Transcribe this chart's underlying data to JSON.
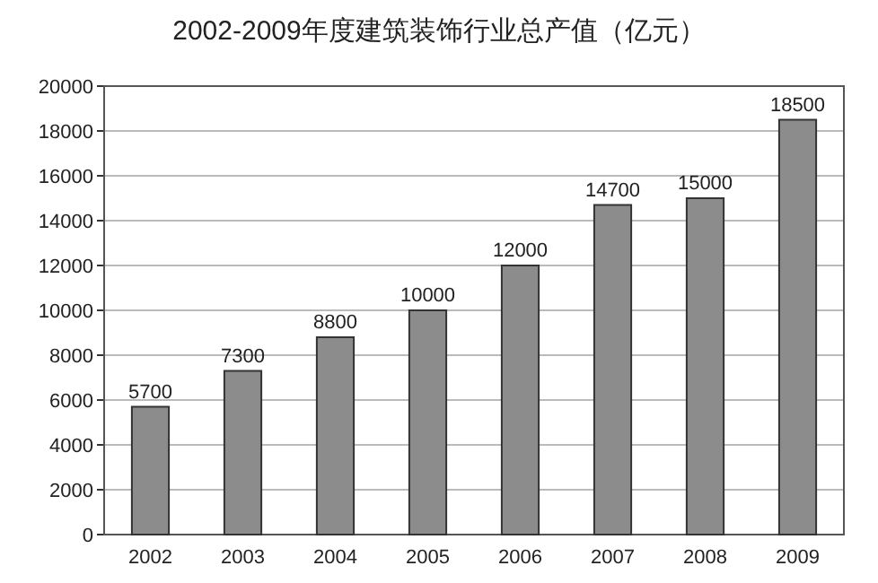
{
  "chart_data": {
    "type": "bar",
    "title": "2002-2009年度建筑装饰行业总产值（亿元）",
    "categories": [
      "2002",
      "2003",
      "2004",
      "2005",
      "2006",
      "2007",
      "2008",
      "2009"
    ],
    "values": [
      5700,
      7300,
      8800,
      10000,
      12000,
      14700,
      15000,
      18500
    ],
    "color": "#8c8c8c",
    "ylim": [
      0,
      20000
    ],
    "yticks": [
      0,
      2000,
      4000,
      6000,
      8000,
      10000,
      12000,
      14000,
      16000,
      18000,
      20000
    ],
    "grid": "y",
    "data_labels": true
  }
}
